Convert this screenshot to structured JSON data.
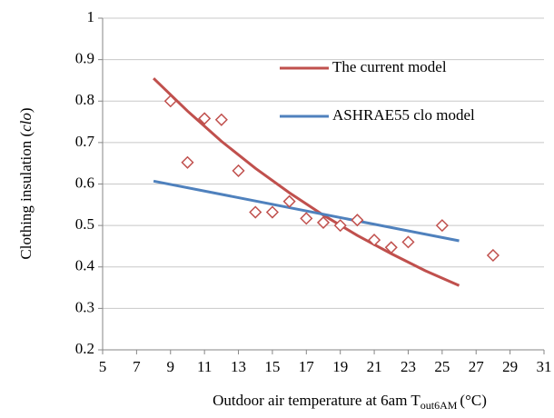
{
  "chart_data": {
    "type": "scatter",
    "xlabel_parts": [
      "Outdoor air temperature at 6am T",
      "out6AM",
      "(°C)"
    ],
    "ylabel_parts": [
      "Clothing insulation (",
      "clo",
      ")"
    ],
    "xlim": [
      5,
      31
    ],
    "xticks": [
      5,
      7,
      9,
      11,
      13,
      15,
      17,
      19,
      21,
      23,
      25,
      27,
      29,
      31
    ],
    "ylim": [
      0.2,
      1
    ],
    "yticks": [
      0.2,
      0.3,
      0.4,
      0.5,
      0.6,
      0.7,
      0.8,
      0.9,
      1
    ],
    "grid": true,
    "legend": "upper right",
    "points": {
      "color": "#c0504d",
      "x": [
        9,
        10,
        11,
        12,
        13,
        14,
        15,
        16,
        17,
        18,
        19,
        20,
        21,
        22,
        23,
        25,
        28
      ],
      "values": [
        0.8,
        0.652,
        0.758,
        0.755,
        0.632,
        0.532,
        0.532,
        0.558,
        0.517,
        0.507,
        0.5,
        0.513,
        0.465,
        0.447,
        0.46,
        0.5,
        0.428
      ]
    },
    "series": [
      {
        "name": "The current model",
        "color": "#c0504d",
        "x": [
          8,
          10,
          12,
          14,
          16,
          18,
          20,
          22,
          24,
          26
        ],
        "values": [
          0.855,
          0.776,
          0.703,
          0.638,
          0.579,
          0.525,
          0.476,
          0.432,
          0.391,
          0.355
        ]
      },
      {
        "name": "ASHRAE55 clo model",
        "color": "#4f81bd",
        "x": [
          8,
          26
        ],
        "values": [
          0.607,
          0.463
        ]
      }
    ]
  }
}
